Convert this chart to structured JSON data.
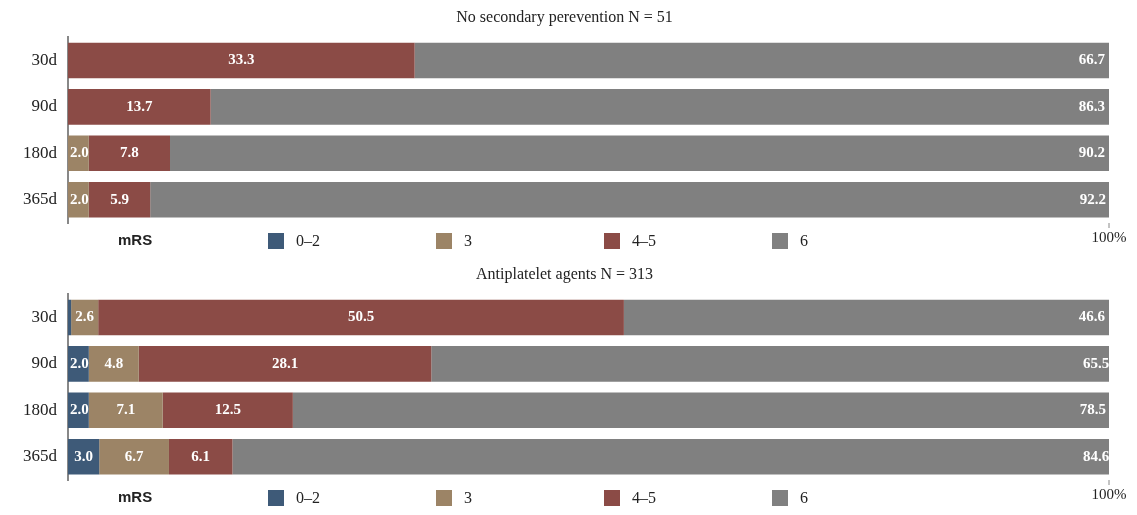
{
  "chart_data": [
    {
      "type": "bar",
      "orientation": "horizontal",
      "stacked": true,
      "title": "No secondary perevention N = 51",
      "legend_title": "mRS",
      "legend": "bottom",
      "categories": [
        "30d",
        "90d",
        "180d",
        "365d"
      ],
      "xlim": [
        0,
        100
      ],
      "annotations": [
        {
          "text": "100%",
          "x": 100
        }
      ],
      "series": [
        {
          "name": "0–2",
          "color": "#3e5a78",
          "values": [
            null,
            null,
            null,
            null
          ],
          "value_labels": [
            null,
            null,
            null,
            null
          ]
        },
        {
          "name": "3",
          "color": "#9c8466",
          "values": [
            null,
            null,
            2.0,
            2.0
          ],
          "value_labels": [
            null,
            null,
            "2.0",
            "2.0"
          ]
        },
        {
          "name": "4–5",
          "color": "#8b4b46",
          "values": [
            33.3,
            13.7,
            7.8,
            5.9
          ],
          "value_labels": [
            "33.3",
            "13.7",
            "7.8",
            "5.9"
          ]
        },
        {
          "name": "6",
          "color": "#808080",
          "values": [
            66.7,
            86.3,
            90.2,
            92.2
          ],
          "value_labels": [
            "66.7",
            "86.3",
            "90.2",
            "92.2"
          ]
        }
      ]
    },
    {
      "type": "bar",
      "orientation": "horizontal",
      "stacked": true,
      "title": "Antiplatelet agents N = 313",
      "legend_title": "mRS",
      "legend": "bottom",
      "categories": [
        "30d",
        "90d",
        "180d",
        "365d"
      ],
      "xlim": [
        0,
        100
      ],
      "annotations": [
        {
          "text": "100%",
          "x": 100
        }
      ],
      "series": [
        {
          "name": "0–2",
          "color": "#3e5a78",
          "values": [
            0.3,
            2.0,
            2.0,
            3.0
          ],
          "value_labels": [
            null,
            "2.0",
            "2.0",
            "3.0"
          ]
        },
        {
          "name": "3",
          "color": "#9c8466",
          "values": [
            2.6,
            4.8,
            7.1,
            6.7
          ],
          "value_labels": [
            "2.6",
            "4.8",
            "7.1",
            "6.7"
          ]
        },
        {
          "name": "4–5",
          "color": "#8b4b46",
          "values": [
            50.5,
            28.1,
            12.5,
            6.1
          ],
          "value_labels": [
            "50.5",
            "28.1",
            "12.5",
            "6.1"
          ]
        },
        {
          "name": "6",
          "color": "#808080",
          "values": [
            46.6,
            65.5,
            78.5,
            84.6
          ],
          "value_labels": [
            "46.6",
            "65.5",
            "78.5",
            "84.6"
          ]
        }
      ]
    }
  ]
}
